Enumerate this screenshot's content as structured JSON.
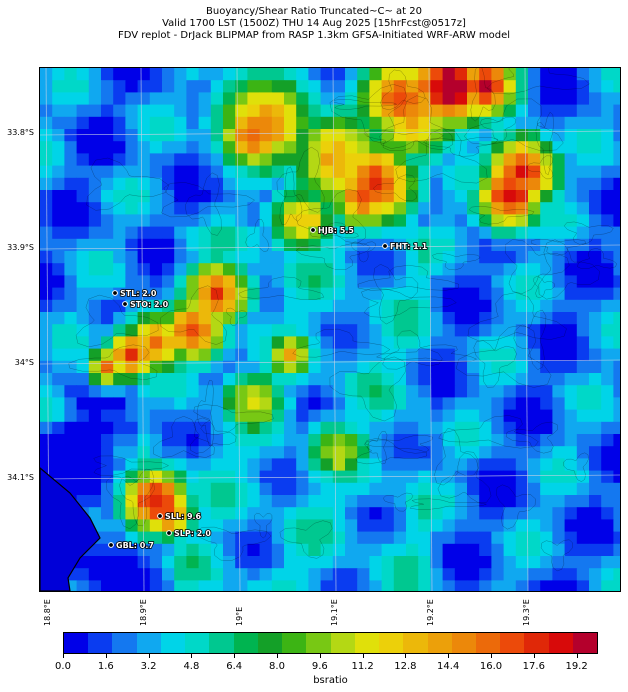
{
  "header": {
    "title_line1": "Buoyancy/Shear Ratio Truncated~C~    at 20",
    "title_line2": "Valid 1700 LST (1500Z) THU 14 Aug 2025 [15hrFcst@0517z]",
    "title_line3": "FDV replot - DrJack BLIPMAP from RASP 1.3km GFSA-Initiated WRF-ARW model"
  },
  "map": {
    "lat_labels": [
      "33.8°S",
      "33.9°S",
      "34°S",
      "34.1°S"
    ],
    "lon_labels": [
      "18.8°E",
      "18.9°E",
      "19°E",
      "19.1°E",
      "19.2°E",
      "19.3°E"
    ],
    "stations": [
      {
        "label": "HJB: 5.5"
      },
      {
        "label": "FHT: 1.1"
      },
      {
        "label": "STL: 2.0"
      },
      {
        "label": "STO: 2.0"
      },
      {
        "label": "SLL: 9.6"
      },
      {
        "label": "SLP: 2.0"
      },
      {
        "label": "GBL: 0.7"
      }
    ],
    "colors": {
      "land_outline": "#000000",
      "gridline": "#c8d2e6",
      "contour": "#000000"
    }
  },
  "colorbar": {
    "label": "bsratio",
    "tick_labels": [
      "0.0",
      "1.6",
      "3.2",
      "4.8",
      "6.4",
      "8.0",
      "9.6",
      "11.2",
      "12.8",
      "14.4",
      "16.0",
      "17.6",
      "19.2"
    ],
    "range": [
      0,
      20
    ],
    "colors": [
      "#0000e8",
      "#0a3cf0",
      "#1478f0",
      "#10a8f0",
      "#00d4e8",
      "#00d8c8",
      "#00c890",
      "#00b450",
      "#14a028",
      "#3cb414",
      "#78c814",
      "#b4d814",
      "#e0e00a",
      "#ecd00a",
      "#ecb80a",
      "#eca00a",
      "#ec880a",
      "#ec6a0a",
      "#ec4a0a",
      "#e02808",
      "#d80a0a",
      "#b4002c"
    ]
  }
}
